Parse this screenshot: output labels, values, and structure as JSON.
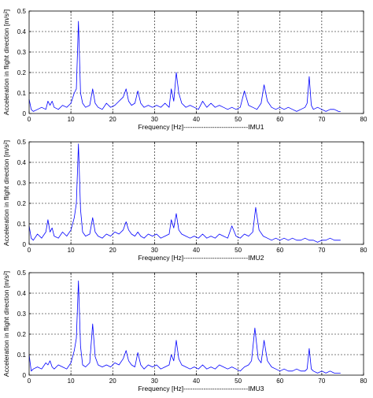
{
  "chart_data": [
    {
      "type": "line",
      "xlabel": "Frequency [Hz]-----------------------------IMU1",
      "ylabel": "Acceleration in flight direction [m/s²]",
      "xlim": [
        0,
        80
      ],
      "ylim": [
        0,
        0.5
      ],
      "xticks": [
        "0",
        "10",
        "20",
        "30",
        "40",
        "50",
        "60",
        "70",
        "80"
      ],
      "yticks": [
        "0",
        "0.1",
        "0.2",
        "0.3",
        "0.4",
        "0.5"
      ],
      "grid": "dashed",
      "line_color": "#0000ff",
      "series": [
        {
          "x": [
            0,
            0.5,
            1,
            2,
            3,
            4,
            4.5,
            5,
            5.5,
            6,
            7,
            8,
            9,
            10,
            10.8,
            11.3,
            11.8,
            12.3,
            12.8,
            13.5,
            14.5,
            15.2,
            15.8,
            16.5,
            17.5,
            18.5,
            19.5,
            20.5,
            21.5,
            22.5,
            23.2,
            23.8,
            24.5,
            25.3,
            26,
            26.7,
            27.5,
            28.5,
            29.5,
            30.5,
            31.5,
            32.5,
            33.5,
            34,
            34.6,
            35.2,
            35.8,
            36.5,
            37.5,
            38.5,
            39.5,
            40.5,
            41.5,
            42.5,
            43.5,
            44.5,
            45.5,
            46.5,
            47.5,
            48.5,
            49.5,
            50.5,
            51.5,
            52.5,
            53.5,
            54.5,
            55.5,
            56.2,
            57,
            58,
            59,
            60,
            61,
            62,
            63,
            64,
            65,
            66,
            66.5,
            67,
            67.5,
            68,
            69,
            70,
            71,
            72,
            73,
            74,
            74.5
          ],
          "y": [
            0.07,
            0.02,
            0.01,
            0.02,
            0.03,
            0.02,
            0.06,
            0.04,
            0.06,
            0.03,
            0.02,
            0.04,
            0.03,
            0.05,
            0.1,
            0.12,
            0.45,
            0.1,
            0.05,
            0.03,
            0.04,
            0.12,
            0.05,
            0.03,
            0.02,
            0.05,
            0.03,
            0.04,
            0.06,
            0.08,
            0.12,
            0.06,
            0.04,
            0.05,
            0.11,
            0.05,
            0.03,
            0.04,
            0.03,
            0.04,
            0.03,
            0.05,
            0.03,
            0.12,
            0.06,
            0.2,
            0.1,
            0.05,
            0.03,
            0.04,
            0.03,
            0.02,
            0.06,
            0.03,
            0.05,
            0.03,
            0.04,
            0.03,
            0.02,
            0.03,
            0.02,
            0.03,
            0.11,
            0.04,
            0.03,
            0.02,
            0.05,
            0.14,
            0.06,
            0.03,
            0.02,
            0.03,
            0.02,
            0.03,
            0.02,
            0.01,
            0.02,
            0.03,
            0.05,
            0.18,
            0.04,
            0.02,
            0.03,
            0.02,
            0.01,
            0.02,
            0.02,
            0.01,
            0.01
          ]
        }
      ]
    },
    {
      "type": "line",
      "xlabel": "Frequency [Hz]-----------------------------IMU2",
      "ylabel": "Acceleration in flight direction [m/s²]",
      "xlim": [
        0,
        80
      ],
      "ylim": [
        0,
        0.5
      ],
      "xticks": [
        "0",
        "10",
        "20",
        "30",
        "40",
        "50",
        "60",
        "70",
        "80"
      ],
      "yticks": [
        "0",
        "0.1",
        "0.2",
        "0.3",
        "0.4",
        "0.5"
      ],
      "grid": "dashed",
      "line_color": "#0000ff",
      "series": [
        {
          "x": [
            0,
            0.5,
            1,
            2,
            3,
            4,
            4.5,
            5,
            5.5,
            6,
            7,
            8,
            9,
            10,
            10.8,
            11.3,
            11.8,
            12.3,
            12.8,
            13.5,
            14.5,
            15.2,
            15.8,
            16.5,
            17.5,
            18.5,
            19.5,
            20.5,
            21.5,
            22.5,
            23.2,
            23.8,
            24.5,
            25.3,
            26,
            26.7,
            27.5,
            28.5,
            29.5,
            30.5,
            31.5,
            32.5,
            33.5,
            34,
            34.6,
            35.2,
            35.8,
            36.5,
            37.5,
            38.5,
            39.5,
            40.5,
            41.5,
            42.5,
            43.5,
            44.5,
            45.5,
            46.5,
            47.5,
            48.5,
            49.5,
            50.5,
            51.5,
            52.5,
            53.5,
            54.2,
            55,
            56,
            57,
            58,
            59,
            60,
            61,
            62,
            63,
            64,
            65,
            66,
            67,
            68,
            69,
            70,
            71,
            72,
            73,
            74,
            74.5
          ],
          "y": [
            0.09,
            0.03,
            0.02,
            0.05,
            0.03,
            0.06,
            0.12,
            0.06,
            0.08,
            0.04,
            0.03,
            0.06,
            0.04,
            0.07,
            0.13,
            0.2,
            0.49,
            0.17,
            0.06,
            0.04,
            0.05,
            0.13,
            0.06,
            0.04,
            0.03,
            0.05,
            0.04,
            0.06,
            0.05,
            0.07,
            0.11,
            0.07,
            0.05,
            0.04,
            0.06,
            0.04,
            0.03,
            0.05,
            0.04,
            0.05,
            0.03,
            0.04,
            0.05,
            0.12,
            0.08,
            0.15,
            0.07,
            0.05,
            0.04,
            0.03,
            0.04,
            0.03,
            0.05,
            0.03,
            0.04,
            0.03,
            0.05,
            0.04,
            0.03,
            0.09,
            0.04,
            0.03,
            0.05,
            0.04,
            0.06,
            0.18,
            0.07,
            0.04,
            0.03,
            0.02,
            0.03,
            0.02,
            0.03,
            0.02,
            0.03,
            0.02,
            0.02,
            0.03,
            0.02,
            0.02,
            0.01,
            0.02,
            0.02,
            0.03,
            0.02,
            0.02,
            0.02
          ]
        }
      ]
    },
    {
      "type": "line",
      "xlabel": "Frequency [Hz]-----------------------------IMU3",
      "ylabel": "Acceleration in flight direction [m/s²]",
      "xlim": [
        0,
        80
      ],
      "ylim": [
        0,
        0.5
      ],
      "xticks": [
        "0",
        "10",
        "20",
        "30",
        "40",
        "50",
        "60",
        "70",
        "80"
      ],
      "yticks": [
        "0",
        "0.1",
        "0.2",
        "0.3",
        "0.4",
        "0.5"
      ],
      "grid": "dashed",
      "line_color": "#0000ff",
      "series": [
        {
          "x": [
            0,
            0.5,
            1,
            2,
            3,
            4,
            4.5,
            5,
            5.5,
            6,
            7,
            8,
            9,
            10,
            10.8,
            11.3,
            11.8,
            12.3,
            12.8,
            13.5,
            14.5,
            15.2,
            15.8,
            16.5,
            17.5,
            18.5,
            19.5,
            20.5,
            21.5,
            22.5,
            23.2,
            23.8,
            24.5,
            25.3,
            26,
            26.7,
            27.5,
            28.5,
            29.5,
            30.5,
            31.5,
            32.5,
            33.5,
            34,
            34.6,
            35.2,
            35.8,
            36.5,
            37.5,
            38.5,
            39.5,
            40.5,
            41.5,
            42.5,
            43.5,
            44.5,
            45.5,
            46.5,
            47.5,
            48.5,
            49.5,
            50.5,
            51.5,
            52.5,
            53.2,
            54,
            54.8,
            55.5,
            56.2,
            57,
            58,
            59,
            60,
            61,
            62,
            63,
            64,
            65,
            66,
            66.5,
            67,
            67.5,
            68,
            69,
            70,
            71,
            72,
            73,
            74,
            74.5
          ],
          "y": [
            0.1,
            0.02,
            0.03,
            0.04,
            0.03,
            0.06,
            0.05,
            0.07,
            0.04,
            0.03,
            0.05,
            0.04,
            0.03,
            0.06,
            0.12,
            0.18,
            0.46,
            0.14,
            0.05,
            0.04,
            0.06,
            0.25,
            0.09,
            0.05,
            0.04,
            0.05,
            0.04,
            0.06,
            0.05,
            0.08,
            0.12,
            0.07,
            0.05,
            0.04,
            0.11,
            0.05,
            0.03,
            0.05,
            0.04,
            0.05,
            0.03,
            0.04,
            0.05,
            0.1,
            0.07,
            0.17,
            0.08,
            0.05,
            0.04,
            0.03,
            0.04,
            0.03,
            0.05,
            0.03,
            0.04,
            0.03,
            0.05,
            0.04,
            0.03,
            0.04,
            0.03,
            0.02,
            0.04,
            0.05,
            0.07,
            0.23,
            0.08,
            0.06,
            0.17,
            0.07,
            0.04,
            0.03,
            0.02,
            0.03,
            0.02,
            0.02,
            0.03,
            0.02,
            0.02,
            0.03,
            0.13,
            0.03,
            0.02,
            0.01,
            0.02,
            0.01,
            0.02,
            0.01,
            0.01,
            0.01
          ]
        }
      ]
    }
  ]
}
